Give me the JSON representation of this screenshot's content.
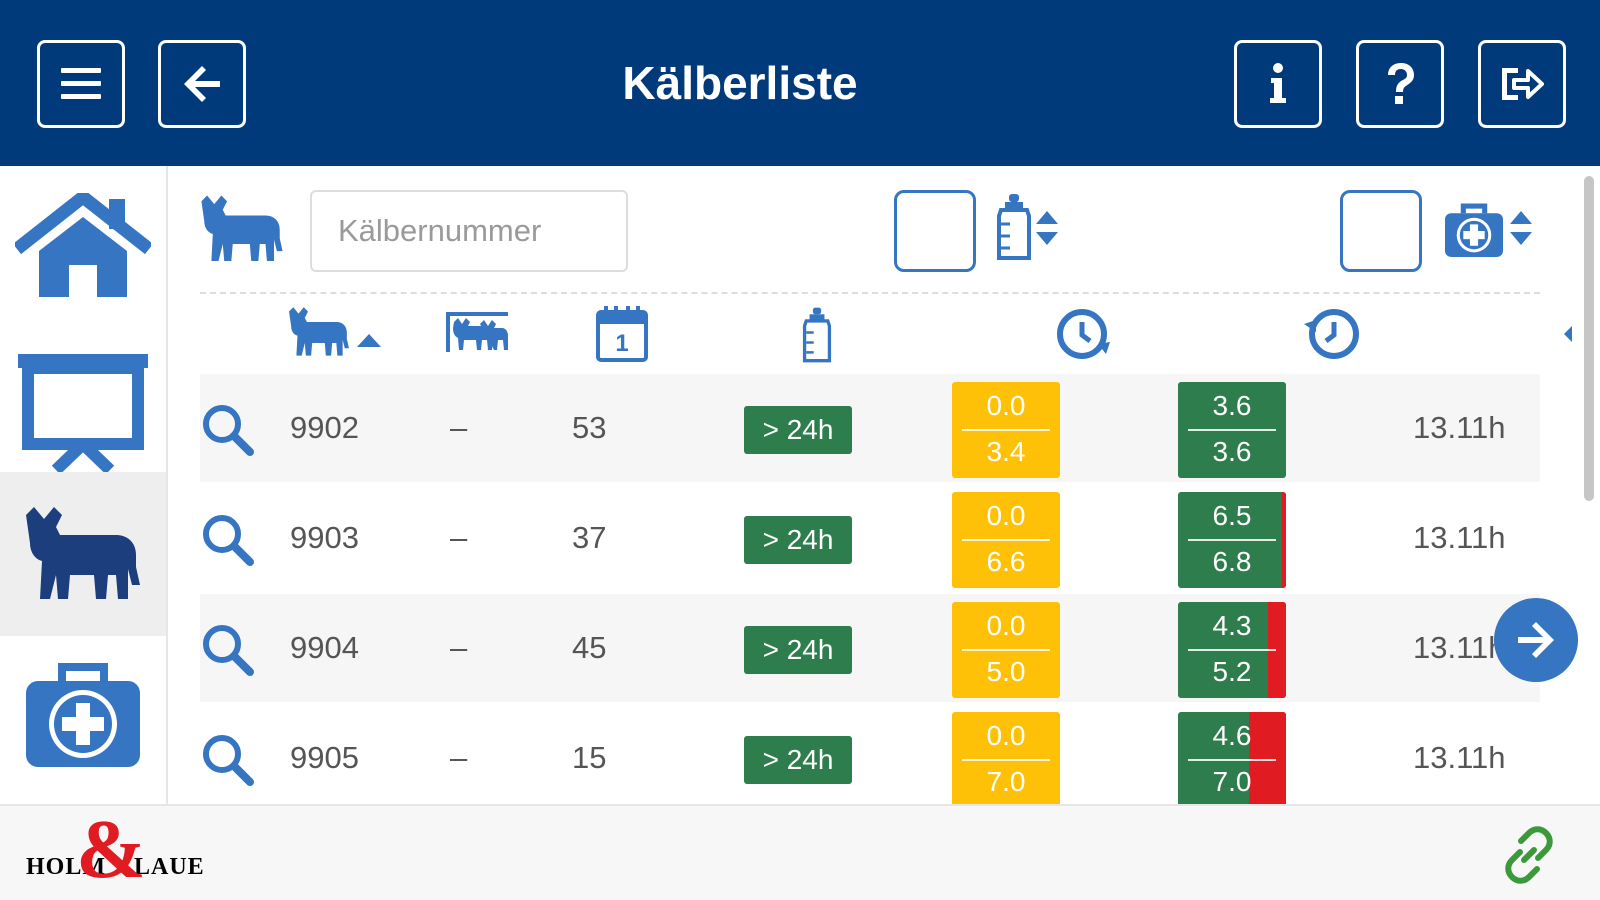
{
  "header": {
    "title": "Kälberliste",
    "buttons": [
      {
        "name": "menu-icon"
      },
      {
        "name": "arrow-left-icon"
      },
      {
        "name": "info-icon"
      },
      {
        "name": "help-icon"
      },
      {
        "name": "logout-icon"
      }
    ]
  },
  "sidebar": {
    "items": [
      {
        "name": "home-icon",
        "active": false
      },
      {
        "name": "presentation-icon",
        "active": false
      },
      {
        "name": "calf-icon",
        "active": true
      },
      {
        "name": "medical-kit-icon",
        "active": false
      }
    ]
  },
  "filters": {
    "search_placeholder": "Kälbernummer",
    "filter_1_icon": "bottle-icon",
    "filter_2_icon": "medical-kit-icon"
  },
  "columns": [
    {
      "icon": "calf-icon",
      "sorted": "ascending"
    },
    {
      "icon": "calf-group-icon"
    },
    {
      "icon": "calendar-icon",
      "label": "1"
    },
    {
      "icon": "bottle-icon"
    },
    {
      "icon": "clock-forward-icon"
    },
    {
      "icon": "clock-history-icon"
    }
  ],
  "rows": [
    {
      "number": "9902",
      "group": "–",
      "age": "53",
      "feed": "> 24h",
      "y_top": "0.0",
      "y_bot": "3.4",
      "g_top": "3.6",
      "g_bot": "3.6",
      "deficit": 0.0,
      "time": "13.11h"
    },
    {
      "number": "9903",
      "group": "–",
      "age": "37",
      "feed": "> 24h",
      "y_top": "0.0",
      "y_bot": "6.6",
      "g_top": "6.5",
      "g_bot": "6.8",
      "deficit": 0.04,
      "time": "13.11h"
    },
    {
      "number": "9904",
      "group": "–",
      "age": "45",
      "feed": "> 24h",
      "y_top": "0.0",
      "y_bot": "5.0",
      "g_top": "4.3",
      "g_bot": "5.2",
      "deficit": 0.17,
      "time": "13.11h"
    },
    {
      "number": "9905",
      "group": "–",
      "age": "15",
      "feed": "> 24h",
      "y_top": "0.0",
      "y_bot": "7.0",
      "g_top": "4.6",
      "g_bot": "7.0",
      "deficit": 0.34,
      "time": "13.11h"
    }
  ],
  "colors": {
    "header_bg": "#003a7a",
    "accent_blue": "#3575c1",
    "badge_green": "#2e7d4d",
    "warn_yellow": "#ffc107",
    "alert_red": "#e11b22",
    "link_green": "#3a9a3a"
  },
  "footer": {
    "logo_text": "HOLM & LAUE",
    "link_icon": "link-icon"
  }
}
